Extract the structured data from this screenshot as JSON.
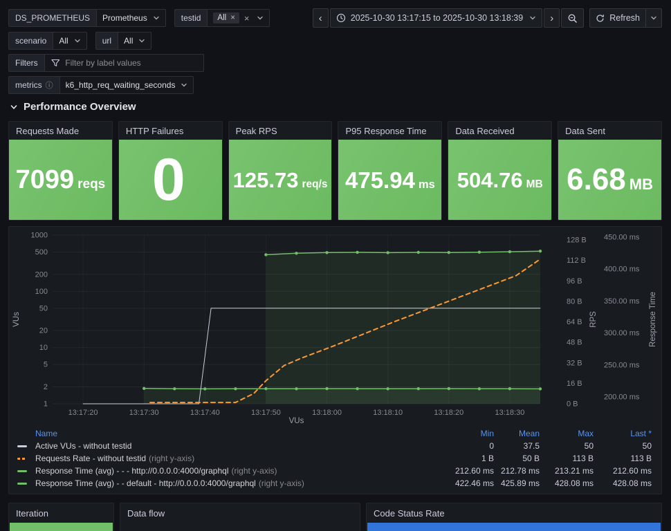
{
  "toolbar": {
    "ds_label": "DS_PROMETHEUS",
    "ds_value": "Prometheus",
    "testid_label": "testid",
    "testid_value": "All",
    "scenario_label": "scenario",
    "scenario_value": "All",
    "url_label": "url",
    "url_value": "All",
    "filters_label": "Filters",
    "filters_placeholder": "Filter by label values",
    "metrics_label": "metrics",
    "metrics_value": "k6_http_req_waiting_seconds",
    "time_range": "2025-10-30 13:17:15 to 2025-10-30 13:18:39",
    "refresh_label": "Refresh"
  },
  "section": {
    "title": "Performance Overview"
  },
  "stats": [
    {
      "title": "Requests Made",
      "value": "7099",
      "unit": "reqs"
    },
    {
      "title": "HTTP Failures",
      "value": "0",
      "unit": ""
    },
    {
      "title": "Peak RPS",
      "value": "125.73",
      "unit": "req/s"
    },
    {
      "title": "P95 Response Time",
      "value": "475.94",
      "unit": "ms"
    },
    {
      "title": "Data Received",
      "value": "504.76",
      "unit": "MB"
    },
    {
      "title": "Data Sent",
      "value": "6.68",
      "unit": "MB"
    }
  ],
  "chart_data": {
    "type": "line",
    "x_range": [
      "13:17:15",
      "13:18:35"
    ],
    "x_ticks": [
      "13:17:20",
      "13:17:30",
      "13:17:40",
      "13:17:50",
      "13:18:00",
      "13:18:10",
      "13:18:20",
      "13:18:30"
    ],
    "xlabel": "VUs",
    "left_axis": {
      "label": "VUs",
      "scale": "log",
      "ticks": [
        1,
        2,
        5,
        10,
        20,
        50,
        100,
        200,
        500,
        1000
      ]
    },
    "right_axis_rps": {
      "label": "RPS",
      "ticks": [
        "0 B",
        "16 B",
        "32 B",
        "48 B",
        "64 B",
        "80 B",
        "96 B",
        "112 B",
        "128 B"
      ]
    },
    "right_axis_ms": {
      "label": "Response Time",
      "ticks": [
        "200.00 ms",
        "250.00 ms",
        "300.00 ms",
        "350.00 ms",
        "400.00 ms",
        "450.00 ms"
      ]
    },
    "series": [
      {
        "name": "Response Time (avg) - - - http://0.0.0.0:4000/graphql",
        "color": "#73bf69",
        "axis": "ms",
        "width": 1.5,
        "markers": true,
        "fill": true,
        "points": [
          [
            "13:17:30",
            213.2
          ],
          [
            "13:17:35",
            212.7
          ],
          [
            "13:17:40",
            212.6
          ],
          [
            "13:17:45",
            212.7
          ],
          [
            "13:17:50",
            212.8
          ],
          [
            "13:17:55",
            212.7
          ],
          [
            "13:18:00",
            212.9
          ],
          [
            "13:18:05",
            212.8
          ],
          [
            "13:18:10",
            212.7
          ],
          [
            "13:18:15",
            212.8
          ],
          [
            "13:18:20",
            212.9
          ],
          [
            "13:18:25",
            212.7
          ],
          [
            "13:18:30",
            212.8
          ],
          [
            "13:18:35",
            212.6
          ]
        ]
      },
      {
        "name": "Response Time (avg) - - default - http://0.0.0.0:4000/graphql",
        "color": "#73bf69",
        "axis": "ms",
        "width": 1.5,
        "markers": true,
        "fill": true,
        "points": [
          [
            "13:17:50",
            422.5
          ],
          [
            "13:17:55",
            424.8
          ],
          [
            "13:18:00",
            425.9
          ],
          [
            "13:18:05",
            426.3
          ],
          [
            "13:18:10",
            425.8
          ],
          [
            "13:18:15",
            426.2
          ],
          [
            "13:18:20",
            426.0
          ],
          [
            "13:18:25",
            426.5
          ],
          [
            "13:18:30",
            427.2
          ],
          [
            "13:18:35",
            428.1
          ]
        ]
      },
      {
        "name": "Active VUs - without testid",
        "color": "#ccccdc",
        "axis": "vus",
        "width": 1,
        "points": [
          [
            "13:17:20",
            0
          ],
          [
            "13:17:39",
            0
          ],
          [
            "13:17:41",
            50
          ],
          [
            "13:18:35",
            50
          ]
        ]
      },
      {
        "name": "Requests Rate - without testid",
        "color": "#ff9830",
        "axis": "rps",
        "width": 2,
        "dash": true,
        "points": [
          [
            "13:17:31",
            1
          ],
          [
            "13:17:45",
            1
          ],
          [
            "13:17:48",
            8
          ],
          [
            "13:17:50",
            18
          ],
          [
            "13:17:53",
            30
          ],
          [
            "13:17:56",
            36
          ],
          [
            "13:18:01",
            45
          ],
          [
            "13:18:11",
            64
          ],
          [
            "13:18:21",
            82
          ],
          [
            "13:18:31",
            100
          ],
          [
            "13:18:35",
            113
          ]
        ]
      }
    ]
  },
  "legend": {
    "headers": {
      "name": "Name",
      "min": "Min",
      "mean": "Mean",
      "max": "Max",
      "last": "Last *"
    },
    "rows": [
      {
        "name": "Active VUs - without testid",
        "suffix": "",
        "color": "#ccccdc",
        "dash": false,
        "min": "0",
        "mean": "37.5",
        "max": "50",
        "last": "50"
      },
      {
        "name": "Requests Rate - without testid",
        "suffix": "(right y-axis)",
        "color": "#ff9830",
        "dash": true,
        "min": "1 B",
        "mean": "50 B",
        "max": "113 B",
        "last": "113 B"
      },
      {
        "name": "Response Time (avg) - - - http://0.0.0.0:4000/graphql",
        "suffix": "(right y-axis)",
        "color": "#73bf69",
        "dash": false,
        "min": "212.60 ms",
        "mean": "212.78 ms",
        "max": "213.21 ms",
        "last": "212.60 ms"
      },
      {
        "name": "Response Time (avg) - - default - http://0.0.0.0:4000/graphql",
        "suffix": "(right y-axis)",
        "color": "#73bf69",
        "dash": false,
        "min": "422.46 ms",
        "mean": "425.89 ms",
        "max": "428.08 ms",
        "last": "428.08 ms"
      }
    ]
  },
  "bottom_panels": [
    {
      "title": "Iteration",
      "bar_color": "#73bf69"
    },
    {
      "title": "Data flow"
    },
    {
      "title": "Code Status Rate",
      "bar_color": "#3274d9"
    }
  ],
  "colors": {
    "green": "#73bf69",
    "orange": "#ff9830",
    "blue": "#3274d9",
    "link_blue": "#5794f2",
    "gray_series": "#ccccdc",
    "background": "#111217",
    "panel": "#181b1f"
  }
}
